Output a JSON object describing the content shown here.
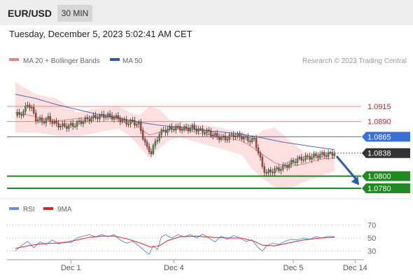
{
  "header": {
    "symbol": "EUR/USD",
    "timeframe": "30 MIN",
    "datetime": "Tuesday, December 5, 2023 5:02:41 AM CET"
  },
  "legend": {
    "ma20_label": "MA 20 + Bollinger Bands",
    "ma50_label": "MA 50",
    "copyright": "Research © 2023 Trading Central",
    "rsi_label": "RSI",
    "rsi_ma_label": "9MA"
  },
  "colors": {
    "ma20": "#f08080",
    "bollinger_fill": "#fde0e0",
    "ma50": "#4a6bb5",
    "resistance": "#f08080",
    "resistance_label": "#cc2222",
    "pivot": "#3a6fd8",
    "support": "#1f8a1f",
    "current_price_bg": "#333333",
    "arrow": "#2a5ca8",
    "rsi": "#6a8ee0",
    "rsi_ma": "#dd2222",
    "candle_up": "#3f9e3f",
    "candle_down": "#d23b3b"
  },
  "chart_data": [
    {
      "type": "candlestick",
      "title": "EUR/USD",
      "timeframe": "30 MIN",
      "ylim": [
        1.0765,
        1.0975
      ],
      "x_tick_labels": [
        "Dec 1",
        "Dec 4",
        "Dec 5",
        "Dec 14"
      ],
      "x_domain_index": [
        -4,
        170
      ],
      "x_ticks_index": [
        27,
        77,
        135,
        165
      ],
      "series": [
        {
          "name": "MA 20 + Bollinger Bands",
          "kind": "band",
          "points": [
            {
              "i": 0,
              "mid": 1.0905,
              "upper": 1.0955,
              "lower": 1.0872
            },
            {
              "i": 10,
              "mid": 1.0898,
              "upper": 1.0935,
              "lower": 1.0872
            },
            {
              "i": 20,
              "mid": 1.0891,
              "upper": 1.0928,
              "lower": 1.0867
            },
            {
              "i": 30,
              "mid": 1.0895,
              "upper": 1.0905,
              "lower": 1.0866
            },
            {
              "i": 40,
              "mid": 1.0898,
              "upper": 1.0912,
              "lower": 1.0872
            },
            {
              "i": 50,
              "mid": 1.0897,
              "upper": 1.0915,
              "lower": 1.0878
            },
            {
              "i": 55,
              "mid": 1.0892,
              "upper": 1.0906,
              "lower": 1.0868
            },
            {
              "i": 60,
              "mid": 1.088,
              "upper": 1.09,
              "lower": 1.085
            },
            {
              "i": 65,
              "mid": 1.0868,
              "upper": 1.0915,
              "lower": 1.083
            },
            {
              "i": 70,
              "mid": 1.0872,
              "upper": 1.091,
              "lower": 1.0846
            },
            {
              "i": 75,
              "mid": 1.0877,
              "upper": 1.0893,
              "lower": 1.086
            },
            {
              "i": 80,
              "mid": 1.0878,
              "upper": 1.089,
              "lower": 1.0864
            },
            {
              "i": 90,
              "mid": 1.087,
              "upper": 1.0885,
              "lower": 1.0854
            },
            {
              "i": 100,
              "mid": 1.0865,
              "upper": 1.088,
              "lower": 1.0845
            },
            {
              "i": 110,
              "mid": 1.0858,
              "upper": 1.0872,
              "lower": 1.0835
            },
            {
              "i": 115,
              "mid": 1.0848,
              "upper": 1.0862,
              "lower": 1.0812
            },
            {
              "i": 120,
              "mid": 1.0836,
              "upper": 1.0875,
              "lower": 1.0796
            },
            {
              "i": 126,
              "mid": 1.0822,
              "upper": 1.088,
              "lower": 1.0782
            },
            {
              "i": 132,
              "mid": 1.0816,
              "upper": 1.0862,
              "lower": 1.0778
            },
            {
              "i": 140,
              "mid": 1.082,
              "upper": 1.084,
              "lower": 1.079
            },
            {
              "i": 148,
              "mid": 1.0828,
              "upper": 1.084,
              "lower": 1.08
            },
            {
              "i": 155,
              "mid": 1.083,
              "upper": 1.084,
              "lower": 1.0808
            }
          ]
        },
        {
          "name": "MA 50",
          "kind": "line",
          "points": [
            {
              "i": 0,
              "v": 1.0935
            },
            {
              "i": 10,
              "v": 1.0928
            },
            {
              "i": 20,
              "v": 1.0918
            },
            {
              "i": 30,
              "v": 1.091
            },
            {
              "i": 40,
              "v": 1.0902
            },
            {
              "i": 50,
              "v": 1.0896
            },
            {
              "i": 60,
              "v": 1.0889
            },
            {
              "i": 70,
              "v": 1.0884
            },
            {
              "i": 80,
              "v": 1.088
            },
            {
              "i": 90,
              "v": 1.0876
            },
            {
              "i": 100,
              "v": 1.0873
            },
            {
              "i": 110,
              "v": 1.0869
            },
            {
              "i": 120,
              "v": 1.0863
            },
            {
              "i": 130,
              "v": 1.0856
            },
            {
              "i": 140,
              "v": 1.0851
            },
            {
              "i": 150,
              "v": 1.0846
            },
            {
              "i": 155,
              "v": 1.0844
            }
          ]
        },
        {
          "name": "Price",
          "kind": "close_path",
          "points": [
            {
              "i": 0,
              "v": 1.09
            },
            {
              "i": 4,
              "v": 1.0905
            },
            {
              "i": 6,
              "v": 1.092
            },
            {
              "i": 8,
              "v": 1.091
            },
            {
              "i": 10,
              "v": 1.0895
            },
            {
              "i": 13,
              "v": 1.089
            },
            {
              "i": 16,
              "v": 1.0895
            },
            {
              "i": 20,
              "v": 1.0885
            },
            {
              "i": 24,
              "v": 1.0882
            },
            {
              "i": 28,
              "v": 1.0884
            },
            {
              "i": 32,
              "v": 1.089
            },
            {
              "i": 36,
              "v": 1.0895
            },
            {
              "i": 40,
              "v": 1.0898
            },
            {
              "i": 44,
              "v": 1.09
            },
            {
              "i": 48,
              "v": 1.0897
            },
            {
              "i": 50,
              "v": 1.0895
            },
            {
              "i": 54,
              "v": 1.0888
            },
            {
              "i": 57,
              "v": 1.089
            },
            {
              "i": 60,
              "v": 1.0885
            },
            {
              "i": 62,
              "v": 1.0865
            },
            {
              "i": 64,
              "v": 1.0845
            },
            {
              "i": 66,
              "v": 1.084
            },
            {
              "i": 68,
              "v": 1.0855
            },
            {
              "i": 70,
              "v": 1.087
            },
            {
              "i": 72,
              "v": 1.0875
            },
            {
              "i": 75,
              "v": 1.0878
            },
            {
              "i": 78,
              "v": 1.088
            },
            {
              "i": 82,
              "v": 1.0878
            },
            {
              "i": 86,
              "v": 1.088
            },
            {
              "i": 90,
              "v": 1.0875
            },
            {
              "i": 94,
              "v": 1.0872
            },
            {
              "i": 98,
              "v": 1.0865
            },
            {
              "i": 102,
              "v": 1.0862
            },
            {
              "i": 106,
              "v": 1.0868
            },
            {
              "i": 110,
              "v": 1.0865
            },
            {
              "i": 113,
              "v": 1.086
            },
            {
              "i": 116,
              "v": 1.086
            },
            {
              "i": 118,
              "v": 1.084
            },
            {
              "i": 120,
              "v": 1.0815
            },
            {
              "i": 122,
              "v": 1.0805
            },
            {
              "i": 124,
              "v": 1.0808
            },
            {
              "i": 128,
              "v": 1.0812
            },
            {
              "i": 132,
              "v": 1.0818
            },
            {
              "i": 136,
              "v": 1.0826
            },
            {
              "i": 140,
              "v": 1.083
            },
            {
              "i": 144,
              "v": 1.0832
            },
            {
              "i": 148,
              "v": 1.0835
            },
            {
              "i": 152,
              "v": 1.0836
            },
            {
              "i": 155,
              "v": 1.0838
            }
          ]
        }
      ],
      "levels": [
        {
          "value": 1.0915,
          "label": "1.0915",
          "kind": "resistance"
        },
        {
          "value": 1.089,
          "label": "1.0890",
          "kind": "resistance"
        },
        {
          "value": 1.0865,
          "label": "1.0865",
          "kind": "pivot"
        },
        {
          "value": 1.0838,
          "label": "1.0838",
          "kind": "current"
        },
        {
          "value": 1.08,
          "label": "1.0800",
          "kind": "support"
        },
        {
          "value": 1.078,
          "label": "1.0780",
          "kind": "support"
        }
      ],
      "forecast_arrow": {
        "from_i": 156,
        "from_v": 1.0833,
        "to_i": 167,
        "to_v": 1.0785
      },
      "legend": [
        "MA 20 + Bollinger Bands",
        "MA 50"
      ],
      "legend_position": "top-left"
    },
    {
      "type": "line",
      "title": "RSI",
      "ylim": [
        20,
        80
      ],
      "y_ticks": [
        70,
        50,
        30
      ],
      "x_tick_labels": [
        "Dec 1",
        "Dec 4",
        "Dec 5",
        "Dec 14"
      ],
      "series": [
        {
          "name": "RSI",
          "points": [
            {
              "i": 0,
              "v": 30
            },
            {
              "i": 3,
              "v": 38
            },
            {
              "i": 6,
              "v": 45
            },
            {
              "i": 9,
              "v": 35
            },
            {
              "i": 12,
              "v": 44
            },
            {
              "i": 15,
              "v": 40
            },
            {
              "i": 18,
              "v": 47
            },
            {
              "i": 21,
              "v": 41
            },
            {
              "i": 24,
              "v": 44
            },
            {
              "i": 27,
              "v": 43
            },
            {
              "i": 30,
              "v": 50
            },
            {
              "i": 33,
              "v": 53
            },
            {
              "i": 36,
              "v": 55
            },
            {
              "i": 39,
              "v": 52
            },
            {
              "i": 42,
              "v": 55
            },
            {
              "i": 45,
              "v": 52
            },
            {
              "i": 48,
              "v": 55
            },
            {
              "i": 51,
              "v": 47
            },
            {
              "i": 54,
              "v": 42
            },
            {
              "i": 57,
              "v": 45
            },
            {
              "i": 60,
              "v": 38
            },
            {
              "i": 63,
              "v": 30
            },
            {
              "i": 65,
              "v": 25
            },
            {
              "i": 67,
              "v": 38
            },
            {
              "i": 69,
              "v": 32
            },
            {
              "i": 71,
              "v": 52
            },
            {
              "i": 73,
              "v": 55
            },
            {
              "i": 76,
              "v": 50
            },
            {
              "i": 79,
              "v": 55
            },
            {
              "i": 82,
              "v": 52
            },
            {
              "i": 85,
              "v": 55
            },
            {
              "i": 88,
              "v": 50
            },
            {
              "i": 91,
              "v": 56
            },
            {
              "i": 94,
              "v": 50
            },
            {
              "i": 97,
              "v": 44
            },
            {
              "i": 100,
              "v": 53
            },
            {
              "i": 103,
              "v": 48
            },
            {
              "i": 106,
              "v": 54
            },
            {
              "i": 109,
              "v": 50
            },
            {
              "i": 112,
              "v": 45
            },
            {
              "i": 115,
              "v": 47
            },
            {
              "i": 118,
              "v": 35
            },
            {
              "i": 120,
              "v": 30
            },
            {
              "i": 122,
              "v": 38
            },
            {
              "i": 125,
              "v": 42
            },
            {
              "i": 128,
              "v": 40
            },
            {
              "i": 131,
              "v": 45
            },
            {
              "i": 134,
              "v": 48
            },
            {
              "i": 137,
              "v": 47
            },
            {
              "i": 140,
              "v": 50
            },
            {
              "i": 143,
              "v": 48
            },
            {
              "i": 146,
              "v": 52
            },
            {
              "i": 149,
              "v": 50
            },
            {
              "i": 152,
              "v": 53
            },
            {
              "i": 155,
              "v": 52
            }
          ]
        },
        {
          "name": "9MA",
          "points": [
            {
              "i": 0,
              "v": 34
            },
            {
              "i": 6,
              "v": 38
            },
            {
              "i": 12,
              "v": 41
            },
            {
              "i": 18,
              "v": 42
            },
            {
              "i": 24,
              "v": 43
            },
            {
              "i": 30,
              "v": 47
            },
            {
              "i": 36,
              "v": 51
            },
            {
              "i": 42,
              "v": 53
            },
            {
              "i": 48,
              "v": 53
            },
            {
              "i": 54,
              "v": 49
            },
            {
              "i": 60,
              "v": 43
            },
            {
              "i": 66,
              "v": 36
            },
            {
              "i": 70,
              "v": 38
            },
            {
              "i": 74,
              "v": 46
            },
            {
              "i": 80,
              "v": 52
            },
            {
              "i": 88,
              "v": 53
            },
            {
              "i": 96,
              "v": 51
            },
            {
              "i": 104,
              "v": 50
            },
            {
              "i": 110,
              "v": 50
            },
            {
              "i": 116,
              "v": 45
            },
            {
              "i": 120,
              "v": 39
            },
            {
              "i": 126,
              "v": 38
            },
            {
              "i": 132,
              "v": 42
            },
            {
              "i": 140,
              "v": 47
            },
            {
              "i": 148,
              "v": 50
            },
            {
              "i": 155,
              "v": 51
            }
          ]
        }
      ],
      "legend": [
        "RSI",
        "9MA"
      ],
      "legend_position": "top-left"
    }
  ]
}
